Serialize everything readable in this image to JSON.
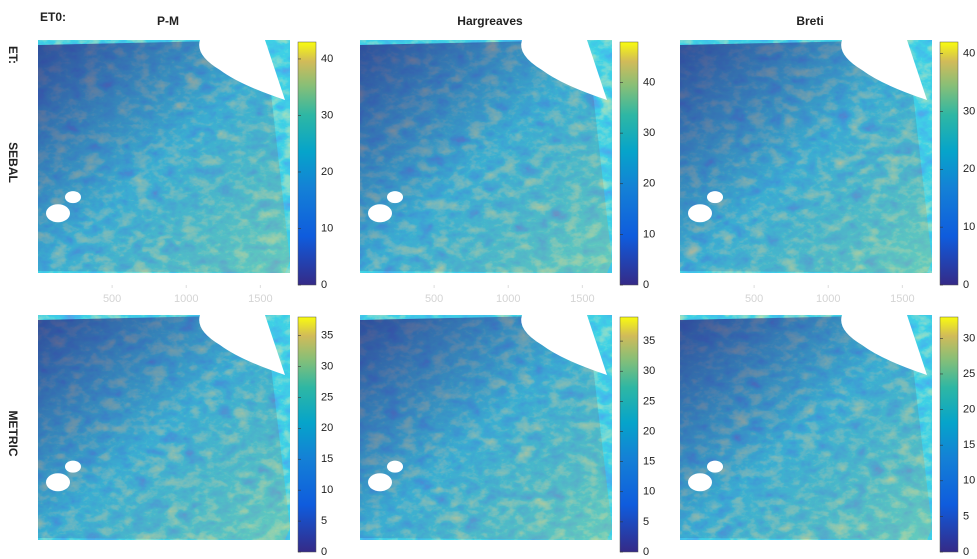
{
  "header": {
    "eto_label": "ET0:",
    "et_label": "ET:"
  },
  "columns": [
    "P-M",
    "Hargreaves",
    "Breti"
  ],
  "rows": [
    "SEBAL",
    "METRIC"
  ],
  "panels": [
    {
      "type": "heatmap",
      "clim": [
        0,
        43
      ],
      "cticks": [
        0,
        10,
        20,
        30,
        40
      ],
      "xlim": [
        0,
        1700
      ],
      "xticks": [
        500,
        1000,
        1500
      ]
    },
    {
      "type": "heatmap",
      "clim": [
        0,
        48
      ],
      "cticks": [
        0,
        10,
        20,
        30,
        40
      ],
      "xlim": [
        0,
        1700
      ],
      "xticks": [
        500,
        1000,
        1500
      ]
    },
    {
      "type": "heatmap",
      "clim": [
        0,
        42
      ],
      "cticks": [
        0,
        10,
        20,
        30,
        40
      ],
      "xlim": [
        0,
        1700
      ],
      "xticks": [
        500,
        1000,
        1500
      ]
    },
    {
      "type": "heatmap",
      "clim": [
        0,
        38
      ],
      "cticks": [
        0,
        5,
        10,
        15,
        20,
        25,
        30,
        35
      ]
    },
    {
      "type": "heatmap",
      "clim": [
        0,
        39
      ],
      "cticks": [
        0,
        5,
        10,
        15,
        20,
        25,
        30,
        35
      ]
    },
    {
      "type": "heatmap",
      "clim": [
        0,
        33
      ],
      "cticks": [
        0,
        5,
        10,
        15,
        20,
        25,
        30
      ]
    }
  ]
}
